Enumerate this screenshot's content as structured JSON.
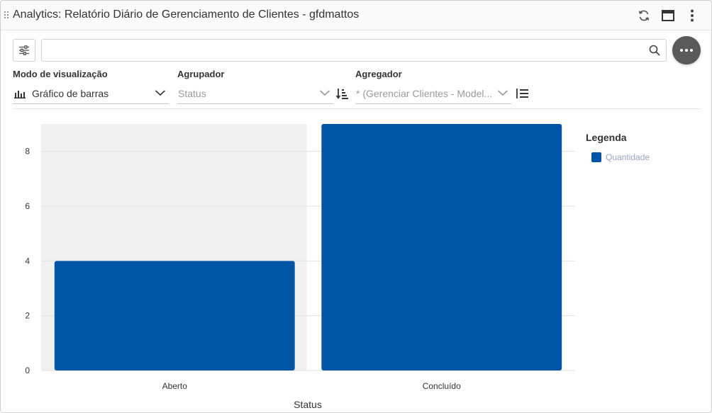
{
  "window": {
    "title": "Analytics: Relatório Diário de Gerenciamento de Clientes - gfdmattos",
    "icons": [
      "refresh-icon",
      "maximize-icon",
      "kebab-menu-icon"
    ]
  },
  "toolbar": {
    "filter_icon": "sliders-icon",
    "search_value": "",
    "search_placeholder": "",
    "more_icon": "ellipsis-icon"
  },
  "controls": {
    "view_mode": {
      "label": "Modo de visualização",
      "value": "Gráfico de barras",
      "icon": "bar-chart-icon"
    },
    "grouper": {
      "label": "Agrupador",
      "value": "Status",
      "sort_icon": "sort-ascending-icon"
    },
    "aggregator": {
      "label": "Agregador",
      "value": "* (Gerenciar Clientes - Model...",
      "sort_icon": "list-sort-icon"
    }
  },
  "legend": {
    "title": "Legenda",
    "items": [
      {
        "label": "Quantidade",
        "color": "#0055a5"
      }
    ]
  },
  "colors": {
    "bar": "#0055a5",
    "highlight_band": "#f1f1f1",
    "grid": "#e2e2e2",
    "more_button": "#5a5a5a"
  },
  "chart_data": {
    "type": "bar",
    "categories": [
      "Aberto",
      "Concluído"
    ],
    "series": [
      {
        "name": "Quantidade",
        "values": [
          4,
          9
        ]
      }
    ],
    "title": "",
    "xlabel": "Status",
    "ylabel": "",
    "ylim": [
      0,
      9
    ],
    "yticks": [
      0,
      2,
      4,
      6,
      8
    ],
    "grid": true,
    "highlighted_category": "Aberto",
    "legend_position": "right"
  }
}
